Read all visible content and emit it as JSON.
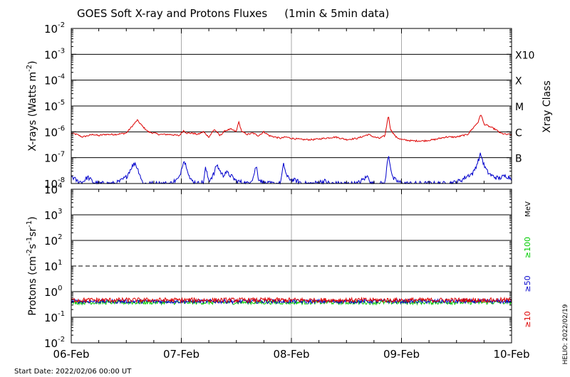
{
  "chart_data": {
    "type": "line",
    "title": "GOES Soft X-ray and Protons Fluxes",
    "subtitle": "(1min & 5min data)",
    "start_label": "Start Date: 2022/02/06 00:00 UT",
    "credit": "HELIO: 2022/02/19",
    "x_ticks": [
      "06-Feb",
      "07-Feb",
      "08-Feb",
      "09-Feb",
      "10-Feb"
    ],
    "xlim_days": [
      0,
      4
    ],
    "panels": [
      {
        "id": "xray",
        "ylabel": "X-rays (Watts m",
        "ylabel_sup": "-2",
        "ylabel_end": ")",
        "ylog_range": [
          -8,
          -2
        ],
        "y_ticks": [
          {
            "exp": -2,
            "text": "10",
            "sup": "-2"
          },
          {
            "exp": -3,
            "text": "10",
            "sup": "-3"
          },
          {
            "exp": -4,
            "text": "10",
            "sup": "-4"
          },
          {
            "exp": -5,
            "text": "10",
            "sup": "-5"
          },
          {
            "exp": -6,
            "text": "10",
            "sup": "-6"
          },
          {
            "exp": -7,
            "text": "10",
            "sup": "-7"
          },
          {
            "exp": -8,
            "text": "10",
            "sup": "-8"
          }
        ],
        "class_title": "Xray Class",
        "classes": [
          {
            "label": "X10",
            "exp": -3
          },
          {
            "label": "X",
            "exp": -4
          },
          {
            "label": "M",
            "exp": -5
          },
          {
            "label": "C",
            "exp": -6
          },
          {
            "label": "B",
            "exp": -7
          }
        ],
        "series": [
          {
            "color": "#dd0000",
            "points": [
              [
                0,
                -6.05
              ],
              [
                0.05,
                -6.1
              ],
              [
                0.1,
                -6.2
              ],
              [
                0.15,
                -6.15
              ],
              [
                0.2,
                -6.1
              ],
              [
                0.25,
                -6.15
              ],
              [
                0.3,
                -6.1
              ],
              [
                0.4,
                -6.1
              ],
              [
                0.5,
                -6.05
              ],
              [
                0.55,
                -5.8
              ],
              [
                0.6,
                -5.55
              ],
              [
                0.65,
                -5.8
              ],
              [
                0.7,
                -6.0
              ],
              [
                0.8,
                -6.1
              ],
              [
                0.9,
                -6.1
              ],
              [
                0.98,
                -6.15
              ],
              [
                1.02,
                -5.95
              ],
              [
                1.05,
                -6.05
              ],
              [
                1.1,
                -6.05
              ],
              [
                1.15,
                -6.1
              ],
              [
                1.2,
                -6.0
              ],
              [
                1.25,
                -6.2
              ],
              [
                1.3,
                -5.9
              ],
              [
                1.35,
                -6.15
              ],
              [
                1.4,
                -5.95
              ],
              [
                1.45,
                -5.9
              ],
              [
                1.5,
                -6.0
              ],
              [
                1.52,
                -5.6
              ],
              [
                1.55,
                -6.0
              ],
              [
                1.6,
                -6.1
              ],
              [
                1.65,
                -6.05
              ],
              [
                1.7,
                -6.15
              ],
              [
                1.75,
                -6.0
              ],
              [
                1.8,
                -6.15
              ],
              [
                1.85,
                -6.2
              ],
              [
                1.9,
                -6.25
              ],
              [
                1.95,
                -6.2
              ],
              [
                2.0,
                -6.25
              ],
              [
                2.1,
                -6.3
              ],
              [
                2.2,
                -6.3
              ],
              [
                2.3,
                -6.25
              ],
              [
                2.4,
                -6.2
              ],
              [
                2.5,
                -6.3
              ],
              [
                2.6,
                -6.25
              ],
              [
                2.7,
                -6.1
              ],
              [
                2.75,
                -6.2
              ],
              [
                2.8,
                -6.25
              ],
              [
                2.85,
                -6.15
              ],
              [
                2.88,
                -5.35
              ],
              [
                2.9,
                -5.9
              ],
              [
                2.95,
                -6.2
              ],
              [
                3.0,
                -6.3
              ],
              [
                3.1,
                -6.35
              ],
              [
                3.2,
                -6.35
              ],
              [
                3.3,
                -6.3
              ],
              [
                3.4,
                -6.2
              ],
              [
                3.5,
                -6.2
              ],
              [
                3.6,
                -6.1
              ],
              [
                3.65,
                -5.85
              ],
              [
                3.7,
                -5.6
              ],
              [
                3.72,
                -5.3
              ],
              [
                3.75,
                -5.7
              ],
              [
                3.8,
                -5.8
              ],
              [
                3.85,
                -5.9
              ],
              [
                3.9,
                -6.05
              ],
              [
                3.95,
                -6.1
              ],
              [
                4.0,
                -6.1
              ]
            ]
          },
          {
            "color": "#0000cc",
            "points": [
              [
                0,
                -7.7
              ],
              [
                0.05,
                -7.9
              ],
              [
                0.1,
                -7.95
              ],
              [
                0.15,
                -7.75
              ],
              [
                0.2,
                -7.95
              ],
              [
                0.25,
                -8.0
              ],
              [
                0.3,
                -8.0
              ],
              [
                0.4,
                -8.0
              ],
              [
                0.45,
                -7.9
              ],
              [
                0.5,
                -7.75
              ],
              [
                0.55,
                -7.35
              ],
              [
                0.58,
                -7.2
              ],
              [
                0.62,
                -7.6
              ],
              [
                0.65,
                -8.0
              ],
              [
                0.7,
                -8.0
              ],
              [
                0.9,
                -8.0
              ],
              [
                0.98,
                -7.8
              ],
              [
                1.02,
                -7.1
              ],
              [
                1.05,
                -7.35
              ],
              [
                1.08,
                -7.85
              ],
              [
                1.1,
                -7.9
              ],
              [
                1.15,
                -8.0
              ],
              [
                1.2,
                -7.95
              ],
              [
                1.22,
                -7.4
              ],
              [
                1.25,
                -7.9
              ],
              [
                1.3,
                -7.6
              ],
              [
                1.32,
                -7.25
              ],
              [
                1.35,
                -7.5
              ],
              [
                1.38,
                -7.7
              ],
              [
                1.4,
                -7.55
              ],
              [
                1.45,
                -7.7
              ],
              [
                1.5,
                -7.9
              ],
              [
                1.55,
                -7.95
              ],
              [
                1.6,
                -8.0
              ],
              [
                1.65,
                -7.8
              ],
              [
                1.68,
                -7.3
              ],
              [
                1.7,
                -7.8
              ],
              [
                1.75,
                -8.0
              ],
              [
                1.9,
                -8.0
              ],
              [
                1.93,
                -7.25
              ],
              [
                1.96,
                -7.75
              ],
              [
                2.0,
                -7.85
              ],
              [
                2.05,
                -7.9
              ],
              [
                2.1,
                -8.0
              ],
              [
                2.2,
                -8.0
              ],
              [
                2.3,
                -7.9
              ],
              [
                2.35,
                -8.0
              ],
              [
                2.6,
                -8.0
              ],
              [
                2.7,
                -7.7
              ],
              [
                2.72,
                -8.0
              ],
              [
                2.85,
                -8.0
              ],
              [
                2.88,
                -6.85
              ],
              [
                2.92,
                -7.8
              ],
              [
                2.98,
                -7.95
              ],
              [
                3.05,
                -8.0
              ],
              [
                3.4,
                -8.0
              ],
              [
                3.5,
                -7.95
              ],
              [
                3.55,
                -7.85
              ],
              [
                3.6,
                -7.7
              ],
              [
                3.65,
                -7.6
              ],
              [
                3.68,
                -7.3
              ],
              [
                3.72,
                -6.85
              ],
              [
                3.75,
                -7.3
              ],
              [
                3.78,
                -7.55
              ],
              [
                3.82,
                -7.7
              ],
              [
                3.88,
                -7.8
              ],
              [
                3.95,
                -7.7
              ],
              [
                4.0,
                -7.8
              ]
            ]
          }
        ]
      },
      {
        "id": "protons",
        "ylabel": "Protons (cm",
        "ylabel_mid1": "-2",
        "ylabel_mid2": "s",
        "ylabel_mid3": "-1",
        "ylabel_mid4": "sr",
        "ylabel_mid5": "-1",
        "ylabel_end": ")",
        "ylog_range": [
          -2,
          4
        ],
        "y_ticks": [
          {
            "exp": 4,
            "text": "10",
            "sup": "4"
          },
          {
            "exp": 3,
            "text": "10",
            "sup": "3"
          },
          {
            "exp": 2,
            "text": "10",
            "sup": "2"
          },
          {
            "exp": 1,
            "text": "10",
            "sup": "1"
          },
          {
            "exp": 0,
            "text": "10",
            "sup": "0"
          },
          {
            "exp": -1,
            "text": "10",
            "sup": "-1"
          },
          {
            "exp": -2,
            "text": "10",
            "sup": "-2"
          }
        ],
        "threshold_exp": 1,
        "unit_label": "MeV",
        "series": [
          {
            "name": "≥100",
            "color": "#00cc00",
            "level_exp": -0.42,
            "jitter": 0.08
          },
          {
            "name": "≥50",
            "color": "#0000cc",
            "level_exp": -0.38,
            "jitter": 0.08
          },
          {
            "name": "≥10",
            "color": "#dd0000",
            "level_exp": -0.33,
            "jitter": 0.09
          }
        ]
      }
    ]
  }
}
